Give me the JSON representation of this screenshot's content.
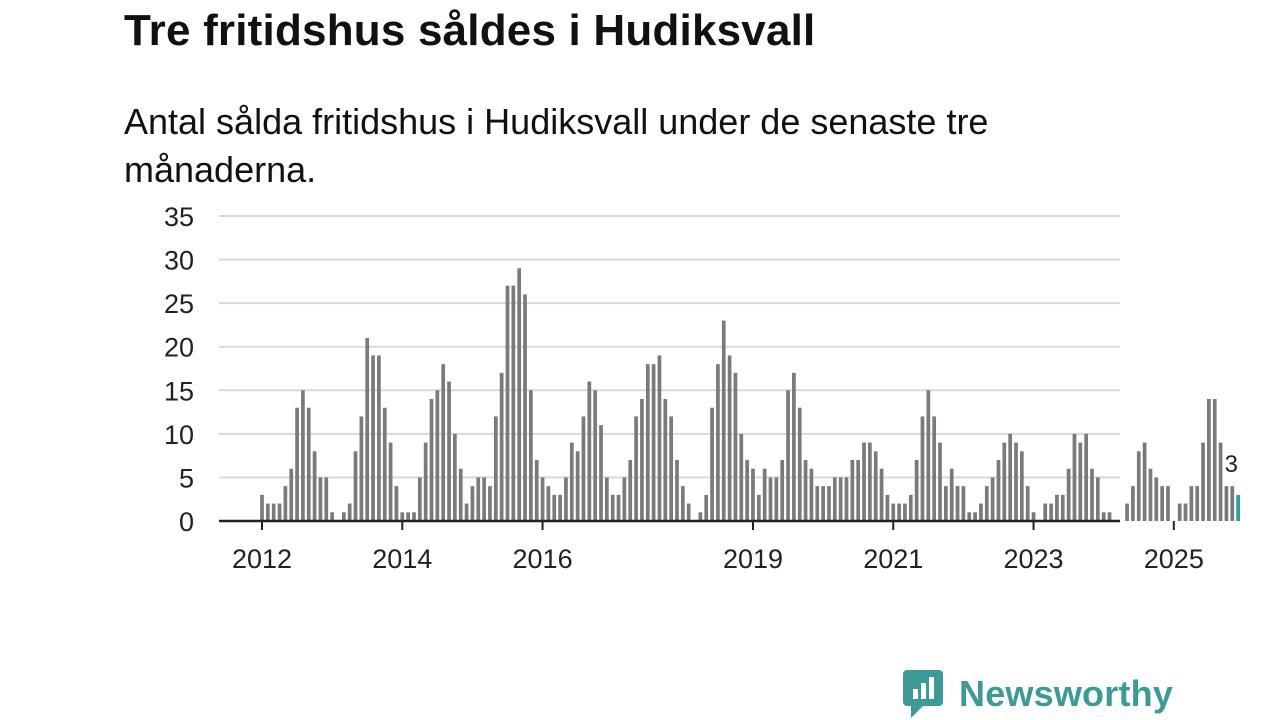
{
  "header": {
    "title": "Tre fritidshus såldes i Hudiksvall",
    "subtitle": "Antal sålda fritidshus i Hudiksvall under de senaste tre månaderna."
  },
  "colors": {
    "bar": "#7a797d",
    "highlight": "#2a9f9c",
    "grid": "#d9d9d9",
    "axis": "#222222",
    "brand": "#3c9a97"
  },
  "brand": {
    "name": "Newsworthy",
    "icon": "bar-chart-speech-icon"
  },
  "chart_data": {
    "type": "bar",
    "title": "Tre fritidshus såldes i Hudiksvall",
    "subtitle": "Antal sålda fritidshus i Hudiksvall under de senaste tre månaderna.",
    "xlabel": "",
    "ylabel": "",
    "ylim": [
      0,
      35
    ],
    "yticks": [
      0,
      5,
      10,
      15,
      20,
      25,
      30,
      35
    ],
    "grid": true,
    "start_year": 2012,
    "start_month": 1,
    "xtick_labels": [
      {
        "label": "2012",
        "index": 0
      },
      {
        "label": "2014",
        "index": 24
      },
      {
        "label": "2016",
        "index": 48
      },
      {
        "label": "2019",
        "index": 84
      },
      {
        "label": "2021",
        "index": 108
      },
      {
        "label": "2023",
        "index": 132
      },
      {
        "label": "2025",
        "index": 156
      }
    ],
    "annotation": {
      "text": "3",
      "index": 166
    },
    "values": [
      3,
      2,
      2,
      2,
      4,
      6,
      13,
      15,
      13,
      8,
      5,
      5,
      1,
      0,
      1,
      2,
      8,
      12,
      21,
      19,
      19,
      13,
      9,
      4,
      1,
      1,
      1,
      5,
      9,
      14,
      15,
      18,
      16,
      10,
      6,
      2,
      4,
      5,
      5,
      4,
      12,
      17,
      27,
      27,
      29,
      26,
      15,
      7,
      5,
      4,
      3,
      3,
      5,
      9,
      8,
      12,
      16,
      15,
      11,
      5,
      3,
      3,
      5,
      7,
      12,
      14,
      18,
      18,
      19,
      14,
      12,
      7,
      4,
      2,
      0,
      1,
      3,
      13,
      18,
      23,
      19,
      17,
      10,
      7,
      6,
      3,
      6,
      5,
      5,
      7,
      15,
      17,
      13,
      7,
      6,
      4,
      4,
      4,
      5,
      5,
      5,
      7,
      7,
      9,
      9,
      8,
      6,
      3,
      2,
      2,
      2,
      3,
      7,
      12,
      15,
      12,
      9,
      4,
      6,
      4,
      4,
      1,
      1,
      2,
      4,
      5,
      7,
      9,
      10,
      9,
      8,
      4,
      1,
      0,
      2,
      2,
      3,
      3,
      6,
      10,
      9,
      10,
      6,
      5,
      1,
      1,
      0,
      0,
      2,
      4,
      8,
      9,
      6,
      5,
      4,
      4,
      0,
      2,
      2,
      4,
      4,
      9,
      14,
      14,
      9,
      4,
      4,
      3
    ]
  }
}
